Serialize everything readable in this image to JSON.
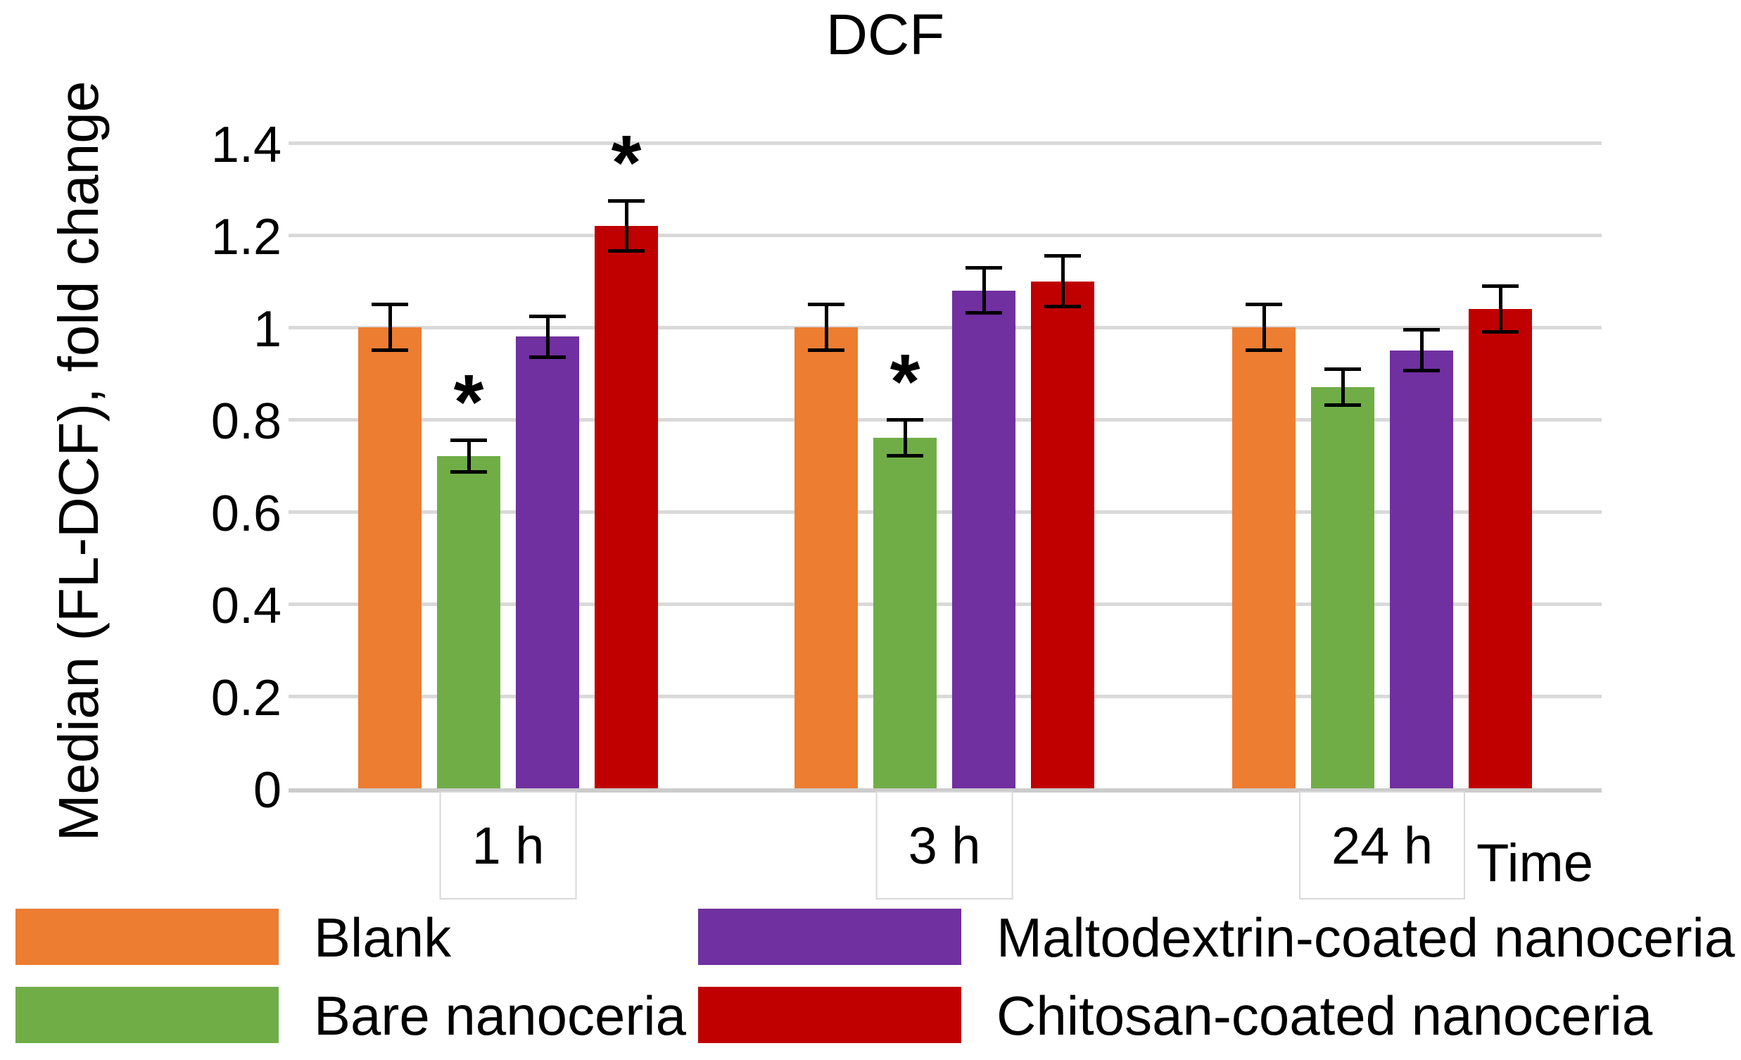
{
  "chart_data": {
    "type": "bar",
    "title": "DCF",
    "ylabel": "Median (FL-DCF), fold change",
    "xlabel": "Time",
    "categories": [
      "1 h",
      "3 h",
      "24 h"
    ],
    "ylim": [
      0,
      1.4
    ],
    "ytick_step": 0.2,
    "ytick_labels": [
      "0",
      "0.2",
      "0.4",
      "0.6",
      "0.8",
      "1",
      "1.2",
      "1.4"
    ],
    "grid": true,
    "gridline_color": "#D9D9D9",
    "legend_position": "bottom",
    "significance_marker": "*",
    "series": [
      {
        "name": "Blank",
        "color": "#ED7D31",
        "values": [
          1.0,
          1.0,
          1.0
        ],
        "errors": [
          0.05,
          0.05,
          0.05
        ],
        "significant": [
          false,
          false,
          false
        ]
      },
      {
        "name": "Bare nanoceria",
        "color": "#70AD47",
        "values": [
          0.72,
          0.76,
          0.87
        ],
        "errors": [
          0.035,
          0.04,
          0.04
        ],
        "significant": [
          true,
          true,
          false
        ]
      },
      {
        "name": "Maltodextrin-coated nanoceria",
        "color": "#7030A0",
        "values": [
          0.98,
          1.08,
          0.95
        ],
        "errors": [
          0.045,
          0.05,
          0.045
        ],
        "significant": [
          false,
          false,
          false
        ]
      },
      {
        "name": "Chitosan-coated nanoceria",
        "color": "#C00000",
        "values": [
          1.22,
          1.1,
          1.04
        ],
        "errors": [
          0.055,
          0.055,
          0.05
        ],
        "significant": [
          true,
          false,
          false
        ]
      }
    ],
    "legend_layout": {
      "rows": 2,
      "columns": 2,
      "order": [
        0,
        2,
        1,
        3
      ]
    }
  }
}
